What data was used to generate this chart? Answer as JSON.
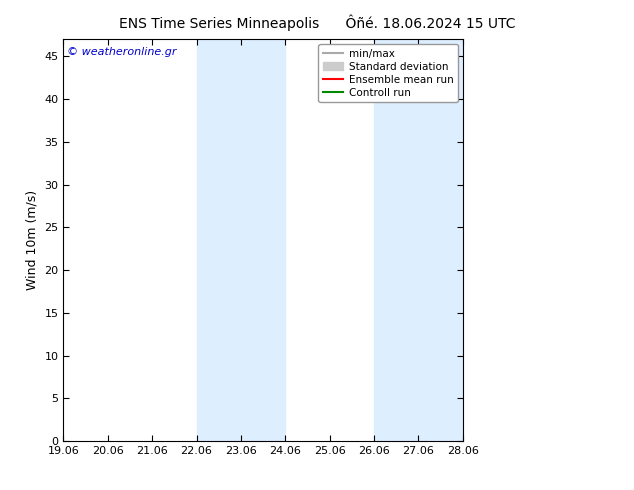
{
  "title_left": "ENS Time Series Minneapolis",
  "title_right": "Ôñé. 18.06.2024 15 UTC",
  "ylabel": "Wind 10m (m/s)",
  "watermark": "© weatheronline.gr",
  "x_tick_labels": [
    "19.06",
    "20.06",
    "21.06",
    "22.06",
    "23.06",
    "24.06",
    "25.06",
    "26.06",
    "27.06",
    "28.06"
  ],
  "x_tick_positions": [
    0,
    1,
    2,
    3,
    4,
    5,
    6,
    7,
    8,
    9
  ],
  "ylim": [
    0,
    47
  ],
  "yticks": [
    0,
    5,
    10,
    15,
    20,
    25,
    30,
    35,
    40,
    45
  ],
  "background_color": "#ffffff",
  "plot_bg_color": "#ffffff",
  "shaded_regions": [
    {
      "x_start": 3,
      "x_end": 5,
      "color": "#ddeeff"
    },
    {
      "x_start": 7,
      "x_end": 9,
      "color": "#ddeeff"
    }
  ],
  "legend_entries": [
    {
      "label": "min/max",
      "color": "#aaaaaa",
      "lw": 1.5,
      "type": "line"
    },
    {
      "label": "Standard deviation",
      "color": "#cccccc",
      "lw": 6,
      "type": "patch"
    },
    {
      "label": "Ensemble mean run",
      "color": "#ff0000",
      "lw": 1.5,
      "type": "line"
    },
    {
      "label": "Controll run",
      "color": "#008800",
      "lw": 1.5,
      "type": "line"
    }
  ],
  "title_fontsize": 10,
  "axis_label_fontsize": 9,
  "tick_fontsize": 8,
  "legend_fontsize": 7.5,
  "watermark_color": "#0000cc",
  "watermark_fontsize": 8
}
